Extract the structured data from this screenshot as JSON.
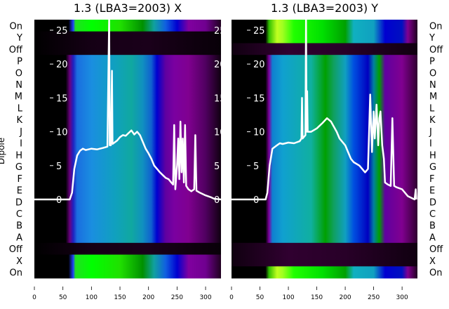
{
  "chart_data": [
    {
      "type": "heatmap",
      "title": "1.3 (LBA3=2003) X",
      "ylabel": "Dipole",
      "xlim": [
        0,
        327
      ],
      "ylim_line": [
        -1.5,
        26.5
      ],
      "xticks": [
        "0",
        "50",
        "100",
        "150",
        "200",
        "250",
        "300"
      ],
      "yticks": [
        "0",
        "5",
        "10",
        "15",
        "20",
        "25"
      ],
      "rows": [
        "On",
        "Y",
        "Off",
        "P",
        "O",
        "N",
        "M",
        "L",
        "K",
        "J",
        "I",
        "H",
        "G",
        "F",
        "E",
        "D",
        "C",
        "B",
        "A",
        "Off",
        "X",
        "On"
      ],
      "row_band": [
        "green",
        "dark",
        "dark",
        "blue",
        "blue",
        "blue",
        "blue",
        "blue",
        "blue",
        "blue",
        "blue",
        "blue",
        "blue",
        "blue",
        "blue",
        "blue",
        "blue",
        "blue",
        "blue",
        "dark",
        "green",
        "green"
      ],
      "bands": {
        "blue": [
          [
            0,
            "#000000"
          ],
          [
            55,
            "#000000"
          ],
          [
            62,
            "#6a0080"
          ],
          [
            68,
            "#2020c0"
          ],
          [
            75,
            "#1a6ee0"
          ],
          [
            100,
            "#1a8ee0"
          ],
          [
            140,
            "#10a0c0"
          ],
          [
            170,
            "#10a8a0"
          ],
          [
            190,
            "#1090c0"
          ],
          [
            205,
            "#1060d0"
          ],
          [
            215,
            "#0000d0"
          ],
          [
            230,
            "#6000a0"
          ],
          [
            245,
            "#7a00a0"
          ],
          [
            270,
            "#800090"
          ],
          [
            300,
            "#500060"
          ],
          [
            327,
            "#100010"
          ]
        ],
        "green": [
          [
            0,
            "#000000"
          ],
          [
            60,
            "#000000"
          ],
          [
            68,
            "#2040ff"
          ],
          [
            72,
            "#20e020"
          ],
          [
            100,
            "#00ff00"
          ],
          [
            150,
            "#20e000"
          ],
          [
            190,
            "#009000"
          ],
          [
            210,
            "#10a0a0"
          ],
          [
            230,
            "#1060e0"
          ],
          [
            250,
            "#0000d0"
          ],
          [
            270,
            "#8000a0"
          ],
          [
            300,
            "#700090"
          ],
          [
            327,
            "#200020"
          ]
        ],
        "dark": [
          [
            0,
            "#000000"
          ],
          [
            100,
            "#150015"
          ],
          [
            200,
            "#1a001a"
          ],
          [
            327,
            "#080008"
          ]
        ]
      },
      "line": [
        [
          0,
          0
        ],
        [
          62,
          0
        ],
        [
          66,
          1
        ],
        [
          70,
          4.5
        ],
        [
          75,
          6.5
        ],
        [
          80,
          7.2
        ],
        [
          85,
          7.5
        ],
        [
          90,
          7.3
        ],
        [
          100,
          7.5
        ],
        [
          110,
          7.4
        ],
        [
          120,
          7.6
        ],
        [
          128,
          7.8
        ],
        [
          130,
          20
        ],
        [
          131,
          27
        ],
        [
          132,
          8
        ],
        [
          134,
          8
        ],
        [
          136,
          19
        ],
        [
          137,
          8.2
        ],
        [
          145,
          8.7
        ],
        [
          150,
          9.2
        ],
        [
          155,
          9.5
        ],
        [
          160,
          9.4
        ],
        [
          165,
          9.8
        ],
        [
          170,
          10.2
        ],
        [
          175,
          9.6
        ],
        [
          180,
          10
        ],
        [
          185,
          9.5
        ],
        [
          190,
          8.5
        ],
        [
          195,
          7.5
        ],
        [
          200,
          6.8
        ],
        [
          205,
          6
        ],
        [
          210,
          5
        ],
        [
          215,
          4.5
        ],
        [
          220,
          4
        ],
        [
          225,
          3.6
        ],
        [
          230,
          3.2
        ],
        [
          235,
          3
        ],
        [
          240,
          2.5
        ],
        [
          243,
          2.2
        ],
        [
          245,
          11
        ],
        [
          247,
          1.5
        ],
        [
          250,
          5
        ],
        [
          252,
          9
        ],
        [
          254,
          3
        ],
        [
          256,
          11.5
        ],
        [
          258,
          4
        ],
        [
          260,
          9
        ],
        [
          262,
          2.5
        ],
        [
          264,
          11
        ],
        [
          266,
          2
        ],
        [
          270,
          1.5
        ],
        [
          275,
          1.2
        ],
        [
          280,
          1.5
        ],
        [
          282,
          9.5
        ],
        [
          284,
          1.3
        ],
        [
          290,
          1
        ],
        [
          300,
          0.6
        ],
        [
          310,
          0.3
        ],
        [
          315,
          0.1
        ],
        [
          327,
          0
        ]
      ]
    },
    {
      "type": "heatmap",
      "title": "1.3 (LBA3=2003) Y",
      "xlim": [
        0,
        327
      ],
      "ylim_line": [
        -1.5,
        26.5
      ],
      "xticks": [
        "0",
        "50",
        "100",
        "150",
        "200",
        "250",
        "300"
      ],
      "yticks": [
        "0",
        "5",
        "10",
        "15",
        "20",
        "25"
      ],
      "rows": [
        "On",
        "Y",
        "Off",
        "P",
        "O",
        "N",
        "M",
        "L",
        "K",
        "J",
        "I",
        "H",
        "G",
        "F",
        "E",
        "D",
        "C",
        "B",
        "A",
        "Off",
        "X",
        "On"
      ],
      "row_band": [
        "green",
        "green",
        "dark",
        "blue",
        "blue",
        "blue",
        "blue",
        "blue",
        "blue",
        "blue",
        "blue",
        "blue",
        "blue",
        "blue",
        "blue",
        "blue",
        "blue",
        "blue",
        "blue",
        "dark",
        "dark",
        "green"
      ],
      "bands": {
        "blue": [
          [
            0,
            "#000000"
          ],
          [
            60,
            "#000000"
          ],
          [
            66,
            "#8000a0"
          ],
          [
            72,
            "#1080d0"
          ],
          [
            90,
            "#10a0d0"
          ],
          [
            140,
            "#10b0a0"
          ],
          [
            165,
            "#00a000"
          ],
          [
            180,
            "#10a060"
          ],
          [
            200,
            "#10a0c0"
          ],
          [
            215,
            "#0050e0"
          ],
          [
            240,
            "#0000c0"
          ],
          [
            250,
            "#0080a0"
          ],
          [
            260,
            "#00a000"
          ],
          [
            270,
            "#6000a0"
          ],
          [
            300,
            "#800090"
          ],
          [
            327,
            "#300030"
          ]
        ],
        "green": [
          [
            0,
            "#000000"
          ],
          [
            60,
            "#000000"
          ],
          [
            66,
            "#30c000"
          ],
          [
            80,
            "#c0ff20"
          ],
          [
            90,
            "#a0ff20"
          ],
          [
            110,
            "#20ff00"
          ],
          [
            160,
            "#00e000"
          ],
          [
            200,
            "#00a000"
          ],
          [
            215,
            "#10b0c0"
          ],
          [
            250,
            "#10a0c0"
          ],
          [
            270,
            "#0000d0"
          ],
          [
            300,
            "#0010c0"
          ],
          [
            310,
            "#800090"
          ],
          [
            327,
            "#200020"
          ]
        ],
        "dark": [
          [
            0,
            "#100010"
          ],
          [
            100,
            "#300030"
          ],
          [
            200,
            "#280028"
          ],
          [
            327,
            "#100010"
          ]
        ]
      },
      "line": [
        [
          0,
          0
        ],
        [
          60,
          0
        ],
        [
          63,
          1
        ],
        [
          67,
          5
        ],
        [
          72,
          7.5
        ],
        [
          80,
          8
        ],
        [
          85,
          8.3
        ],
        [
          90,
          8.2
        ],
        [
          100,
          8.4
        ],
        [
          110,
          8.3
        ],
        [
          120,
          8.6
        ],
        [
          123,
          9
        ],
        [
          124,
          15
        ],
        [
          125,
          9
        ],
        [
          130,
          9.5
        ],
        [
          131,
          27
        ],
        [
          132,
          10
        ],
        [
          133,
          16
        ],
        [
          134,
          10
        ],
        [
          140,
          10
        ],
        [
          150,
          10.5
        ],
        [
          160,
          11.3
        ],
        [
          168,
          12
        ],
        [
          175,
          11.5
        ],
        [
          185,
          10
        ],
        [
          190,
          9
        ],
        [
          200,
          8
        ],
        [
          205,
          7
        ],
        [
          210,
          6
        ],
        [
          215,
          5.5
        ],
        [
          225,
          5
        ],
        [
          235,
          4
        ],
        [
          240,
          4.5
        ],
        [
          244,
          15.5
        ],
        [
          247,
          7
        ],
        [
          250,
          13
        ],
        [
          252,
          9
        ],
        [
          255,
          14
        ],
        [
          258,
          8
        ],
        [
          260,
          12
        ],
        [
          262,
          13
        ],
        [
          265,
          8
        ],
        [
          268,
          6
        ],
        [
          270,
          2.5
        ],
        [
          275,
          2.2
        ],
        [
          280,
          2
        ],
        [
          283,
          12
        ],
        [
          286,
          2
        ],
        [
          290,
          1.8
        ],
        [
          300,
          1.5
        ],
        [
          310,
          0.5
        ],
        [
          322,
          0
        ],
        [
          324,
          1.5
        ],
        [
          325,
          0
        ]
      ]
    }
  ]
}
